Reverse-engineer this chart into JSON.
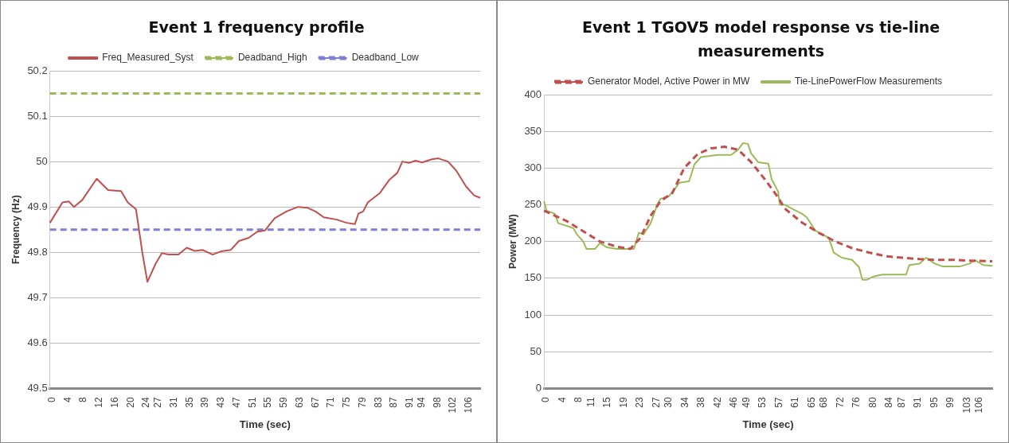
{
  "chart_data": [
    {
      "type": "line",
      "title": "Event 1 frequency profile",
      "xlabel": "Time (sec)",
      "ylabel": "Frequency (Hz)",
      "xlim": [
        0,
        109.5
      ],
      "ylim": [
        49.5,
        50.2
      ],
      "yticks": [
        49.5,
        49.6,
        49.7,
        49.8,
        49.9,
        50,
        50.1,
        50.2
      ],
      "xticks": [
        0,
        4,
        8,
        12,
        16,
        20,
        24,
        27,
        31,
        35,
        39,
        43,
        47,
        51,
        55,
        59,
        63,
        67,
        71,
        75,
        79,
        83,
        87,
        91,
        94,
        98,
        102,
        106
      ],
      "grid": "y",
      "legend": "top",
      "marker": "none",
      "series": [
        {
          "name": "Freq_Measured_Syst",
          "color": "#c0504d",
          "line_style": "solid",
          "x": [
            0,
            3.2,
            4.8,
            6.1,
            8.2,
            11.9,
            14.8,
            18.1,
            19.8,
            21.9,
            23.5,
            24.8,
            26.9,
            28.5,
            30.2,
            32.7,
            34.8,
            36.9,
            38.9,
            41.4,
            43.5,
            46,
            48.1,
            50.6,
            52.7,
            54.7,
            57.2,
            60.2,
            63.1,
            65.6,
            67.6,
            69.7,
            73,
            75.5,
            77.6,
            78.5,
            79.7,
            80.9,
            83.9,
            86.4,
            88.4,
            89.7,
            91.4,
            93,
            94.7,
            97.2,
            98.8,
            101.3,
            103.4,
            105.9,
            108,
            109.5
          ],
          "values": [
            49.865,
            49.91,
            49.912,
            49.9,
            49.915,
            49.962,
            49.937,
            49.935,
            49.91,
            49.895,
            49.8,
            49.735,
            49.775,
            49.798,
            49.795,
            49.795,
            49.81,
            49.803,
            49.805,
            49.795,
            49.802,
            49.805,
            49.825,
            49.832,
            49.845,
            49.848,
            49.875,
            49.89,
            49.9,
            49.898,
            49.89,
            49.877,
            49.872,
            49.865,
            49.862,
            49.885,
            49.89,
            49.91,
            49.93,
            49.96,
            49.975,
            50,
            49.997,
            50.002,
            49.998,
            50.005,
            50.007,
            50,
            49.98,
            49.945,
            49.925,
            49.92
          ]
        },
        {
          "name": "Deadband_High",
          "color": "#9bbb59",
          "line_style": "dashed",
          "x": [
            0,
            109.5
          ],
          "values": [
            50.15,
            50.15
          ]
        },
        {
          "name": "Deadband_Low",
          "color": "#7f7fd5",
          "line_style": "dashed",
          "x": [
            0,
            109.5
          ],
          "values": [
            49.85,
            49.85
          ]
        }
      ]
    },
    {
      "type": "line",
      "title": "Event 1 TGOV5 model response vs tie-line measurements",
      "xlabel": "Time (sec)",
      "ylabel": "Power (MW)",
      "xlim": [
        0,
        109.7
      ],
      "ylim": [
        0,
        400
      ],
      "yticks": [
        0,
        50,
        100,
        150,
        200,
        250,
        300,
        350,
        400
      ],
      "xticks": [
        0,
        4,
        8,
        11,
        15,
        19,
        23,
        27,
        30,
        34,
        38,
        42,
        46,
        49,
        53,
        57,
        61,
        65,
        68,
        72,
        76,
        80,
        84,
        87,
        91,
        95,
        99,
        103,
        106
      ],
      "grid": "y",
      "legend": "top",
      "marker": "none",
      "series": [
        {
          "name": "Generator Model, Active Power in MW",
          "color": "#c0504d",
          "line_style": "dashed",
          "x": [
            0,
            5.5,
            9.6,
            13.7,
            17.8,
            21.1,
            23.6,
            26.1,
            28.5,
            31.4,
            34.3,
            37.6,
            40.9,
            44.2,
            47.5,
            50.7,
            54,
            57.3,
            58.9,
            63.1,
            67.2,
            71.3,
            75.4,
            79.5,
            83.6,
            87.7,
            91.9,
            96,
            100.1,
            104.2,
            109.7
          ],
          "values": [
            242,
            228,
            214,
            200,
            193,
            190,
            205,
            235,
            255,
            266,
            300,
            319,
            327,
            329,
            325,
            308,
            285,
            260,
            245,
            226,
            212,
            200,
            191,
            185,
            180,
            178,
            176,
            175,
            175,
            174,
            173
          ]
        },
        {
          "name": "Tie-LinePowerFlow Measurements",
          "color": "#9bbb59",
          "line_style": "solid",
          "x": [
            0,
            0.6,
            2.6,
            3.5,
            6.3,
            7.2,
            8,
            9.6,
            10.4,
            12.5,
            13.7,
            15.4,
            17.8,
            22,
            23.2,
            24.4,
            26.1,
            27.7,
            28.5,
            30.6,
            31.8,
            33.1,
            35.5,
            36.8,
            38.4,
            42.5,
            45.8,
            47.5,
            48.7,
            49.9,
            50.7,
            52.4,
            54.9,
            55.7,
            57.3,
            57.7,
            59,
            60.6,
            63.1,
            64.3,
            66.4,
            69.7,
            70.9,
            72.9,
            75.4,
            77.1,
            77.9,
            79.1,
            80.4,
            82.8,
            87.7,
            88.6,
            89.4,
            91.9,
            93.5,
            95.6,
            97.6,
            101.7,
            104.2,
            105.4,
            107.5,
            109.7
          ],
          "values": [
            255,
            242,
            238,
            225,
            220,
            218,
            210,
            200,
            190,
            190,
            198,
            192,
            190,
            190,
            212,
            210,
            225,
            250,
            258,
            262,
            270,
            280,
            282,
            305,
            315,
            318,
            318,
            325,
            334,
            333,
            320,
            308,
            306,
            285,
            268,
            250,
            250,
            245,
            238,
            233,
            215,
            205,
            185,
            178,
            175,
            165,
            148,
            148,
            152,
            155,
            155,
            155,
            168,
            170,
            178,
            170,
            166,
            166,
            170,
            175,
            168,
            167
          ]
        }
      ]
    }
  ]
}
